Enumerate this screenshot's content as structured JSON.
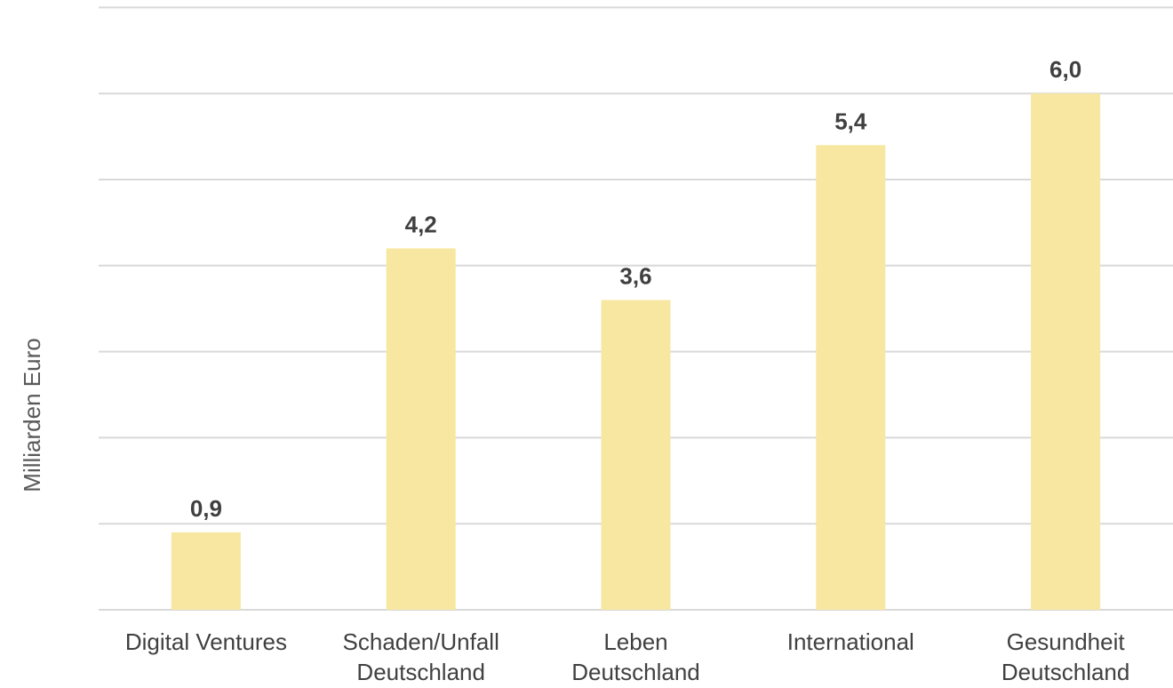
{
  "chart_data": {
    "type": "bar",
    "title": "",
    "xlabel": "",
    "ylabel": "Milliarden Euro",
    "categories": [
      [
        "Digital Ventures"
      ],
      [
        "Schaden/Unfall",
        "Deutschland"
      ],
      [
        "Leben",
        "Deutschland"
      ],
      [
        "International"
      ],
      [
        "Gesundheit",
        "Deutschland"
      ]
    ],
    "values": [
      0.9,
      4.2,
      3.6,
      5.4,
      6.0
    ],
    "value_labels": [
      "0,9",
      "4,2",
      "3,6",
      "5,4",
      "6,0"
    ],
    "ylim": [
      0,
      7
    ],
    "gridline_step": 1,
    "grid": true,
    "y_tick_labels_visible": false,
    "legend": "none",
    "colors": {
      "bar": "#f7e7a1",
      "gridline": "#d9d9d9",
      "text": "#404040",
      "axis_title": "#595959"
    }
  }
}
